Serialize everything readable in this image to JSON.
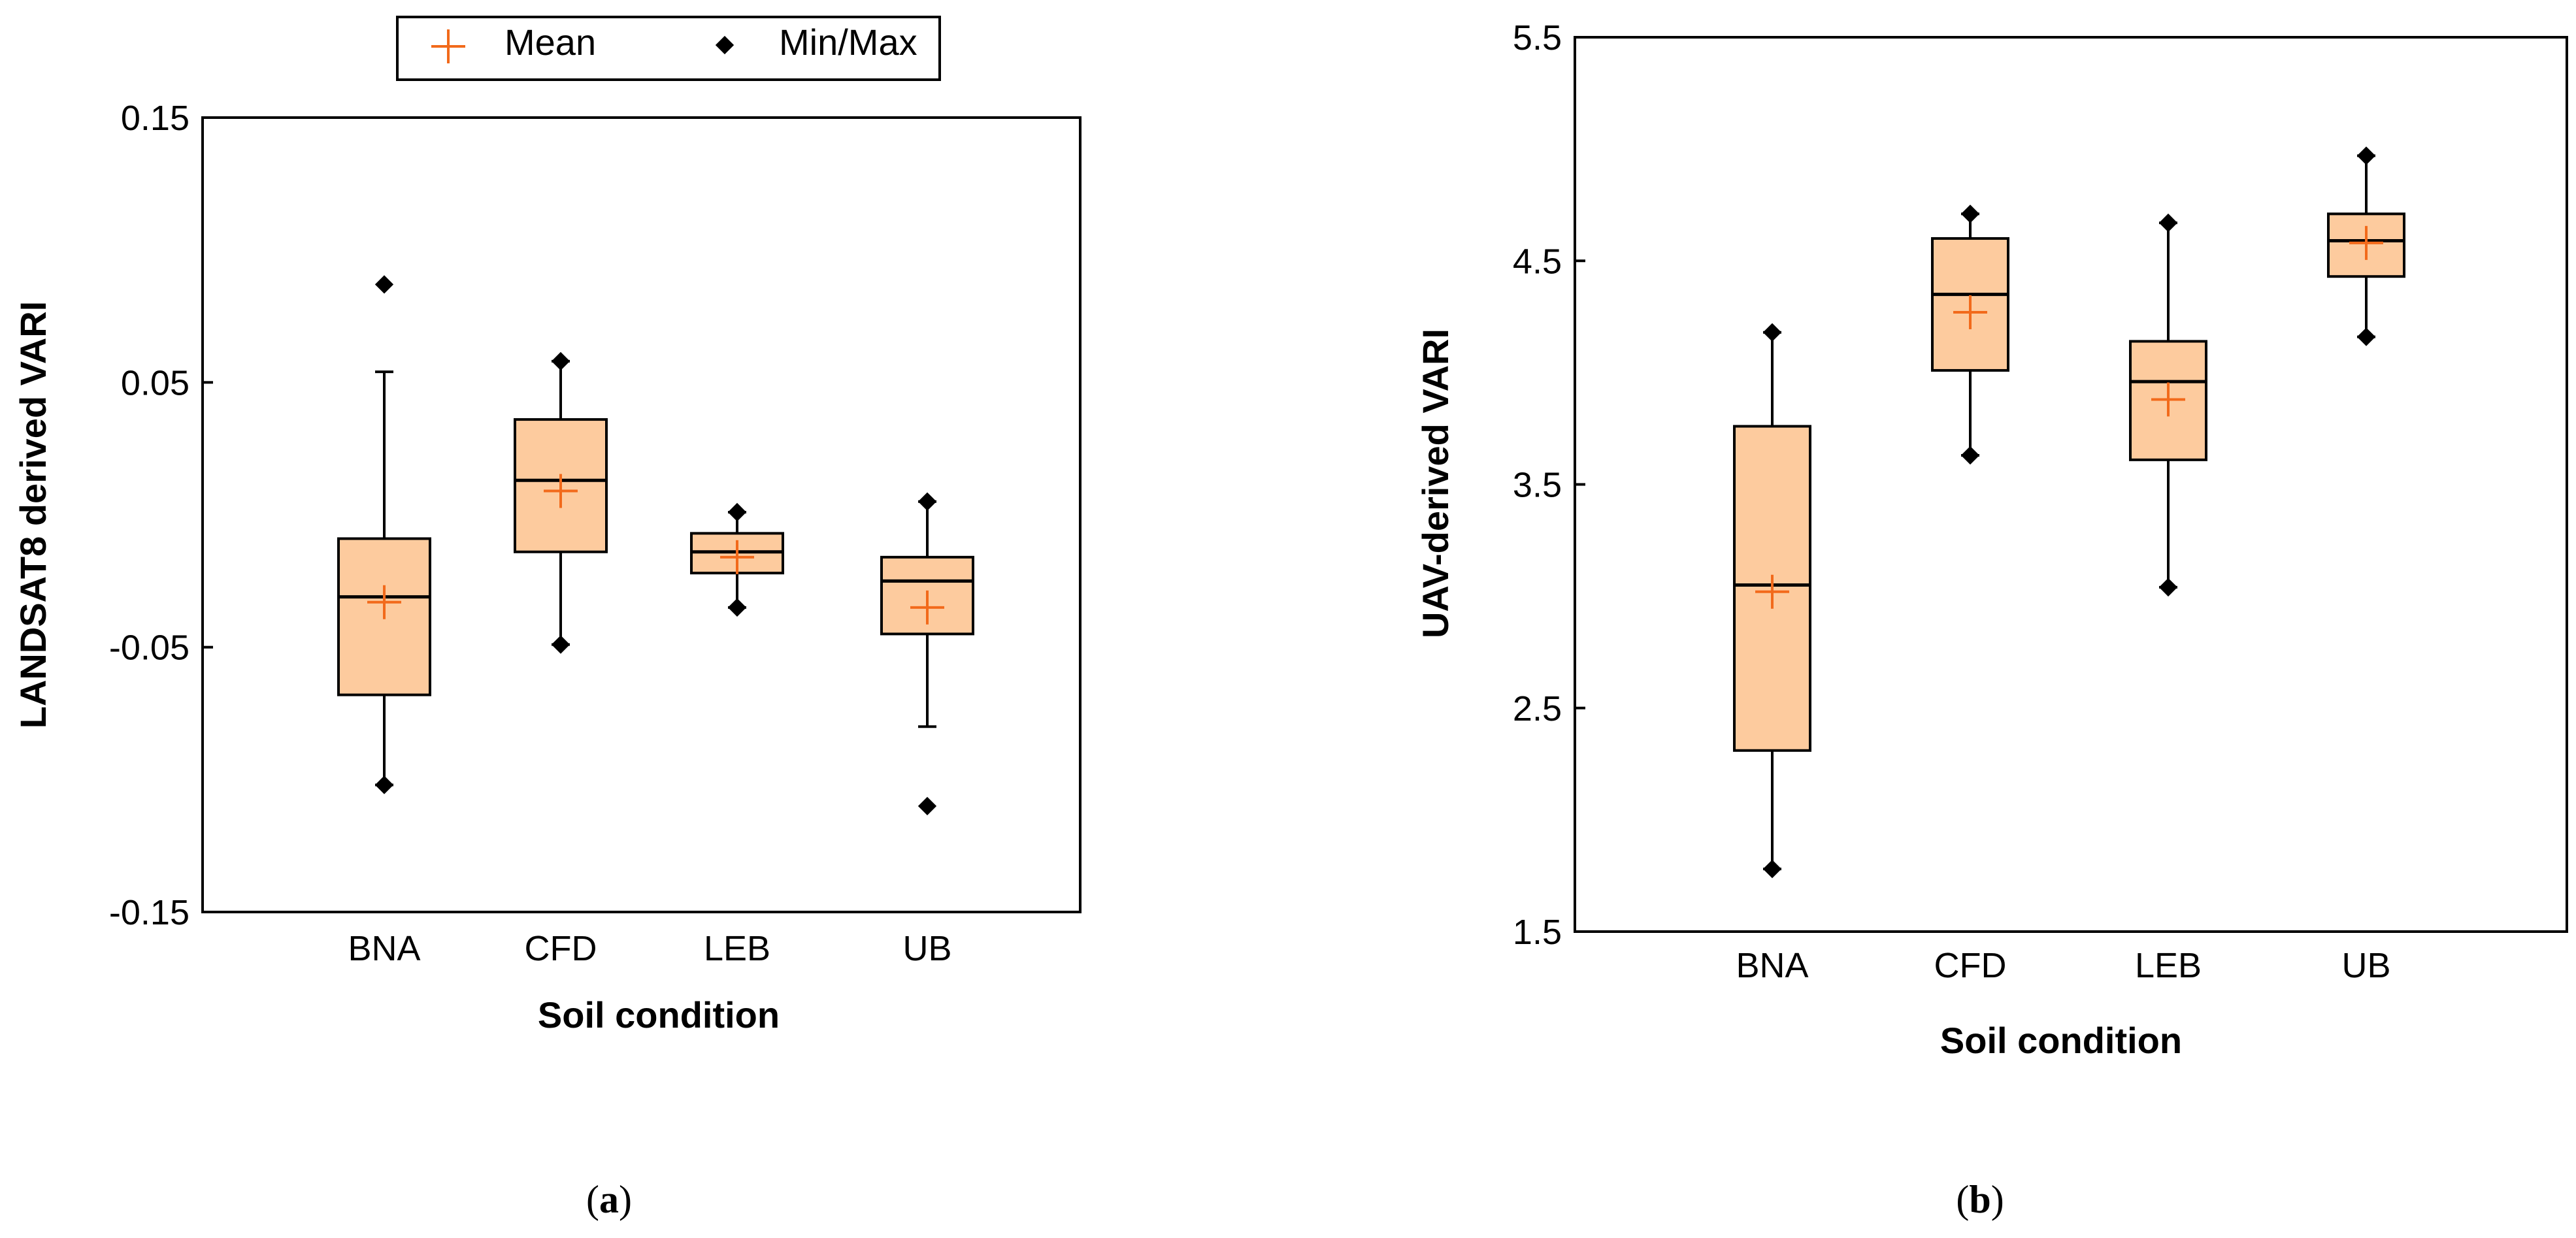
{
  "legend": {
    "mean_label": "Mean",
    "minmax_label": "Min/Max"
  },
  "colors": {
    "box_fill": "#FDCB9E",
    "mean_marker": "#F26A1B",
    "stroke": "#000000"
  },
  "chart_data": [
    {
      "type": "box",
      "panel": "a",
      "caption": "(a)",
      "caption_open": "(",
      "caption_letter": "a",
      "caption_close": ")",
      "xlabel": "Soil condition",
      "ylabel": "LANDSAT8 derived VARI",
      "ylim": [
        -0.15,
        0.15
      ],
      "yticks": [
        0.15,
        0.05,
        -0.05,
        -0.15
      ],
      "ytick_labels": [
        "0.15",
        "0.05",
        "-0.05",
        "-0.15"
      ],
      "categories": [
        "BNA",
        "CFD",
        "LEB",
        "UB"
      ],
      "boxes": [
        {
          "category": "BNA",
          "min": -0.102,
          "whisker_low": -0.102,
          "q1": -0.068,
          "median": -0.031,
          "q3": -0.009,
          "whisker_high": 0.054,
          "max": 0.087,
          "mean": -0.033
        },
        {
          "category": "CFD",
          "min": -0.049,
          "whisker_low": -0.049,
          "q1": -0.014,
          "median": 0.013,
          "q3": 0.036,
          "whisker_high": 0.058,
          "max": 0.058,
          "mean": 0.009
        },
        {
          "category": "LEB",
          "min": -0.035,
          "whisker_low": -0.035,
          "q1": -0.022,
          "median": -0.014,
          "q3": -0.007,
          "whisker_high": 0.001,
          "max": 0.001,
          "mean": -0.016
        },
        {
          "category": "UB",
          "min": -0.11,
          "whisker_low": -0.08,
          "q1": -0.045,
          "median": -0.025,
          "q3": -0.016,
          "whisker_high": 0.005,
          "max": 0.005,
          "mean": -0.035
        }
      ]
    },
    {
      "type": "box",
      "panel": "b",
      "caption": "(b)",
      "caption_open": "(",
      "caption_letter": "b",
      "caption_close": ")",
      "xlabel": "Soil condition",
      "ylabel": "UAV-derived VARI",
      "ylim": [
        1.5,
        5.5
      ],
      "yticks": [
        5.5,
        4.5,
        3.5,
        2.5,
        1.5
      ],
      "ytick_labels": [
        "5.5",
        "4.5",
        "3.5",
        "2.5",
        "1.5"
      ],
      "categories": [
        "BNA",
        "CFD",
        "LEB",
        "UB"
      ],
      "boxes": [
        {
          "category": "BNA",
          "min": 1.78,
          "whisker_low": 1.78,
          "q1": 2.31,
          "median": 3.05,
          "q3": 3.76,
          "whisker_high": 4.18,
          "max": 4.18,
          "mean": 3.02
        },
        {
          "category": "CFD",
          "min": 3.63,
          "whisker_low": 3.63,
          "q1": 4.01,
          "median": 4.35,
          "q3": 4.6,
          "whisker_high": 4.71,
          "max": 4.71,
          "mean": 4.27
        },
        {
          "category": "LEB",
          "min": 3.04,
          "whisker_low": 3.04,
          "q1": 3.61,
          "median": 3.96,
          "q3": 4.14,
          "whisker_high": 4.67,
          "max": 4.67,
          "mean": 3.88
        },
        {
          "category": "UB",
          "min": 4.16,
          "whisker_low": 4.16,
          "q1": 4.43,
          "median": 4.59,
          "q3": 4.71,
          "whisker_high": 4.97,
          "max": 4.97,
          "mean": 4.58
        }
      ]
    }
  ]
}
